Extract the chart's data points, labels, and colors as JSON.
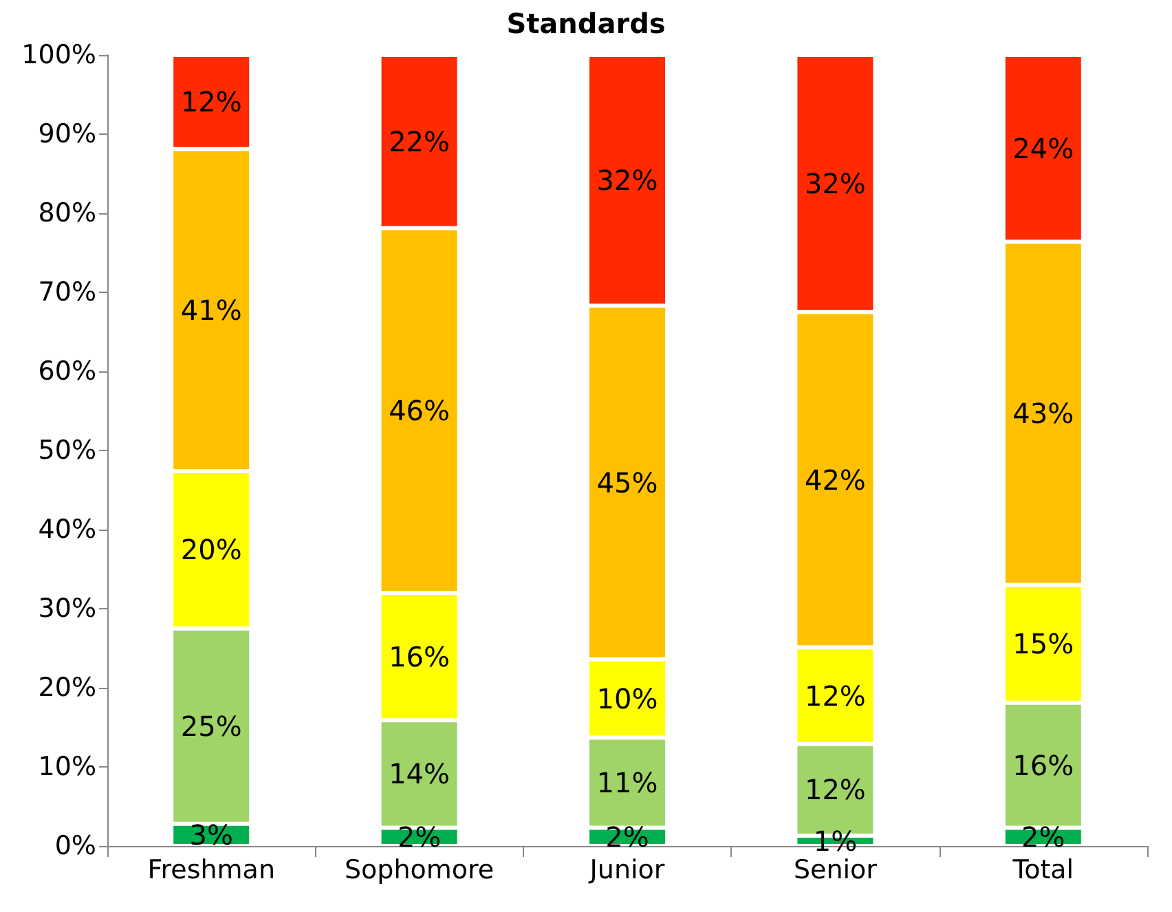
{
  "chart_data": {
    "type": "bar",
    "stacked": true,
    "title": "Standards",
    "categories": [
      "Freshman",
      "Sophomore",
      "Junior",
      "Senior",
      "Total"
    ],
    "series": [
      {
        "color": "#00b050",
        "values": [
          2.8,
          2.3,
          2.3,
          1.3,
          2.3
        ],
        "value_labels": [
          "3%",
          "2%",
          "2%",
          "1%",
          "2%"
        ]
      },
      {
        "color": "#a0d468",
        "values": [
          24.7,
          13.6,
          11.4,
          11.6,
          15.8
        ],
        "value_labels": [
          "25%",
          "14%",
          "11%",
          "12%",
          "16%"
        ]
      },
      {
        "color": "#ffff00",
        "values": [
          19.9,
          16.1,
          9.9,
          12.2,
          14.9
        ],
        "value_labels": [
          "20%",
          "16%",
          "10%",
          "12%",
          "15%"
        ]
      },
      {
        "color": "#ffc000",
        "values": [
          40.7,
          46.1,
          44.7,
          42.4,
          43.4
        ],
        "value_labels": [
          "41%",
          "46%",
          "45%",
          "42%",
          "43%"
        ]
      },
      {
        "color": "#ff2a00",
        "values": [
          11.9,
          21.9,
          31.7,
          32.5,
          23.6
        ],
        "value_labels": [
          "12%",
          "22%",
          "32%",
          "32%",
          "24%"
        ]
      }
    ],
    "ylim": [
      0,
      100
    ],
    "yticks": [
      {
        "value": 0,
        "label": "0%"
      },
      {
        "value": 10,
        "label": "10%"
      },
      {
        "value": 20,
        "label": "20%"
      },
      {
        "value": 30,
        "label": "30%"
      },
      {
        "value": 40,
        "label": "40%"
      },
      {
        "value": 50,
        "label": "50%"
      },
      {
        "value": 60,
        "label": "60%"
      },
      {
        "value": 70,
        "label": "70%"
      },
      {
        "value": 80,
        "label": "80%"
      },
      {
        "value": 90,
        "label": "90%"
      },
      {
        "value": 100,
        "label": "100%"
      }
    ],
    "grid": false
  }
}
